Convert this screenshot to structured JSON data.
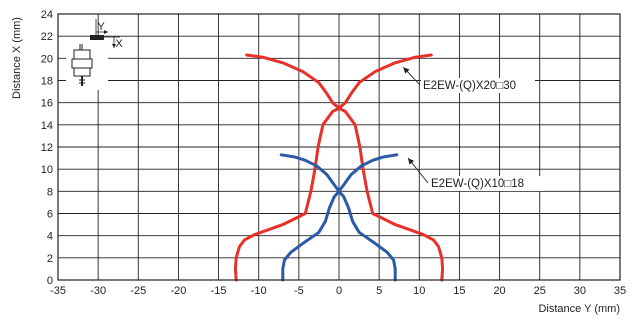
{
  "chart_data": {
    "type": "line",
    "xlabel": "Distance Y (mm)",
    "ylabel": "Distance X (mm)",
    "xlim": [
      -35,
      35
    ],
    "ylim": [
      0,
      24
    ],
    "x_ticks": [
      -35,
      -30,
      -25,
      -20,
      -15,
      -10,
      -5,
      0,
      5,
      10,
      15,
      20,
      25,
      30,
      35
    ],
    "y_ticks": [
      0,
      2,
      4,
      6,
      8,
      10,
      12,
      14,
      16,
      18,
      20,
      22,
      24
    ],
    "grid": true,
    "colors": {
      "red": "#e8312a",
      "blue": "#2a5aa8",
      "grid": "#222222"
    },
    "series": [
      {
        "name": "E2EW-(Q)X20□30",
        "color": "#e8312a",
        "curves": [
          [
            [
              -12.8,
              0
            ],
            [
              -12.9,
              1
            ],
            [
              -12.8,
              2
            ],
            [
              -12.4,
              3
            ],
            [
              -11.8,
              3.6
            ],
            [
              -10.5,
              4.1
            ],
            [
              -7,
              5
            ],
            [
              -4.2,
              6
            ],
            [
              -3.5,
              8
            ],
            [
              -3,
              10
            ],
            [
              -2.6,
              12
            ],
            [
              -2,
              14
            ],
            [
              -0.8,
              15.2
            ],
            [
              0,
              15.5
            ],
            [
              0.8,
              16
            ],
            [
              1.5,
              16.8
            ],
            [
              2.5,
              17.8
            ],
            [
              4.5,
              18.8
            ],
            [
              7,
              19.6
            ],
            [
              9.5,
              20.1
            ],
            [
              11.5,
              20.3
            ]
          ],
          [
            [
              12.8,
              0
            ],
            [
              12.9,
              1
            ],
            [
              12.8,
              2
            ],
            [
              12.4,
              3
            ],
            [
              11.8,
              3.6
            ],
            [
              10.5,
              4.1
            ],
            [
              7,
              5
            ],
            [
              4.2,
              6
            ],
            [
              3.5,
              8
            ],
            [
              3,
              10
            ],
            [
              2.6,
              12
            ],
            [
              2,
              14
            ],
            [
              0.8,
              15.2
            ],
            [
              0,
              15.5
            ],
            [
              -0.8,
              16
            ],
            [
              -1.5,
              16.8
            ],
            [
              -2.5,
              17.8
            ],
            [
              -4.5,
              18.8
            ],
            [
              -7,
              19.6
            ],
            [
              -9.5,
              20.1
            ],
            [
              -11.5,
              20.3
            ]
          ]
        ]
      },
      {
        "name": "E2EW-(Q)X10□18",
        "color": "#2a5aa8",
        "curves": [
          [
            [
              -7,
              0
            ],
            [
              -7,
              1
            ],
            [
              -6.8,
              1.8
            ],
            [
              -6,
              2.5
            ],
            [
              -4.5,
              3.3
            ],
            [
              -2.5,
              4.3
            ],
            [
              -1.7,
              5.3
            ],
            [
              -1.2,
              6.5
            ],
            [
              -0.6,
              7.5
            ],
            [
              0,
              8
            ],
            [
              0.6,
              8.6
            ],
            [
              1.5,
              9.5
            ],
            [
              2.8,
              10.3
            ],
            [
              4.2,
              10.8
            ],
            [
              5.5,
              11.1
            ],
            [
              7.2,
              11.3
            ]
          ],
          [
            [
              7,
              0
            ],
            [
              7,
              1
            ],
            [
              6.8,
              1.8
            ],
            [
              6,
              2.5
            ],
            [
              4.5,
              3.3
            ],
            [
              2.5,
              4.3
            ],
            [
              1.7,
              5.3
            ],
            [
              1.2,
              6.5
            ],
            [
              0.6,
              7.5
            ],
            [
              0,
              8
            ],
            [
              -0.6,
              8.6
            ],
            [
              -1.5,
              9.5
            ],
            [
              -2.8,
              10.3
            ],
            [
              -4.2,
              10.8
            ],
            [
              -5.5,
              11.1
            ],
            [
              -7.2,
              11.3
            ]
          ]
        ]
      }
    ],
    "annotations": [
      {
        "text": "E2EW-(Q)X20□30",
        "series": "E2EW-(Q)X20□30",
        "points_to": [
          8,
          19.2
        ]
      },
      {
        "text": "E2EW-(Q)X10□18",
        "series": "E2EW-(Q)X10□18",
        "points_to": [
          8.6,
          11
        ]
      }
    ],
    "inset": {
      "icon": "sensor-orientation-icon",
      "labels": [
        "Y",
        "X"
      ]
    }
  }
}
